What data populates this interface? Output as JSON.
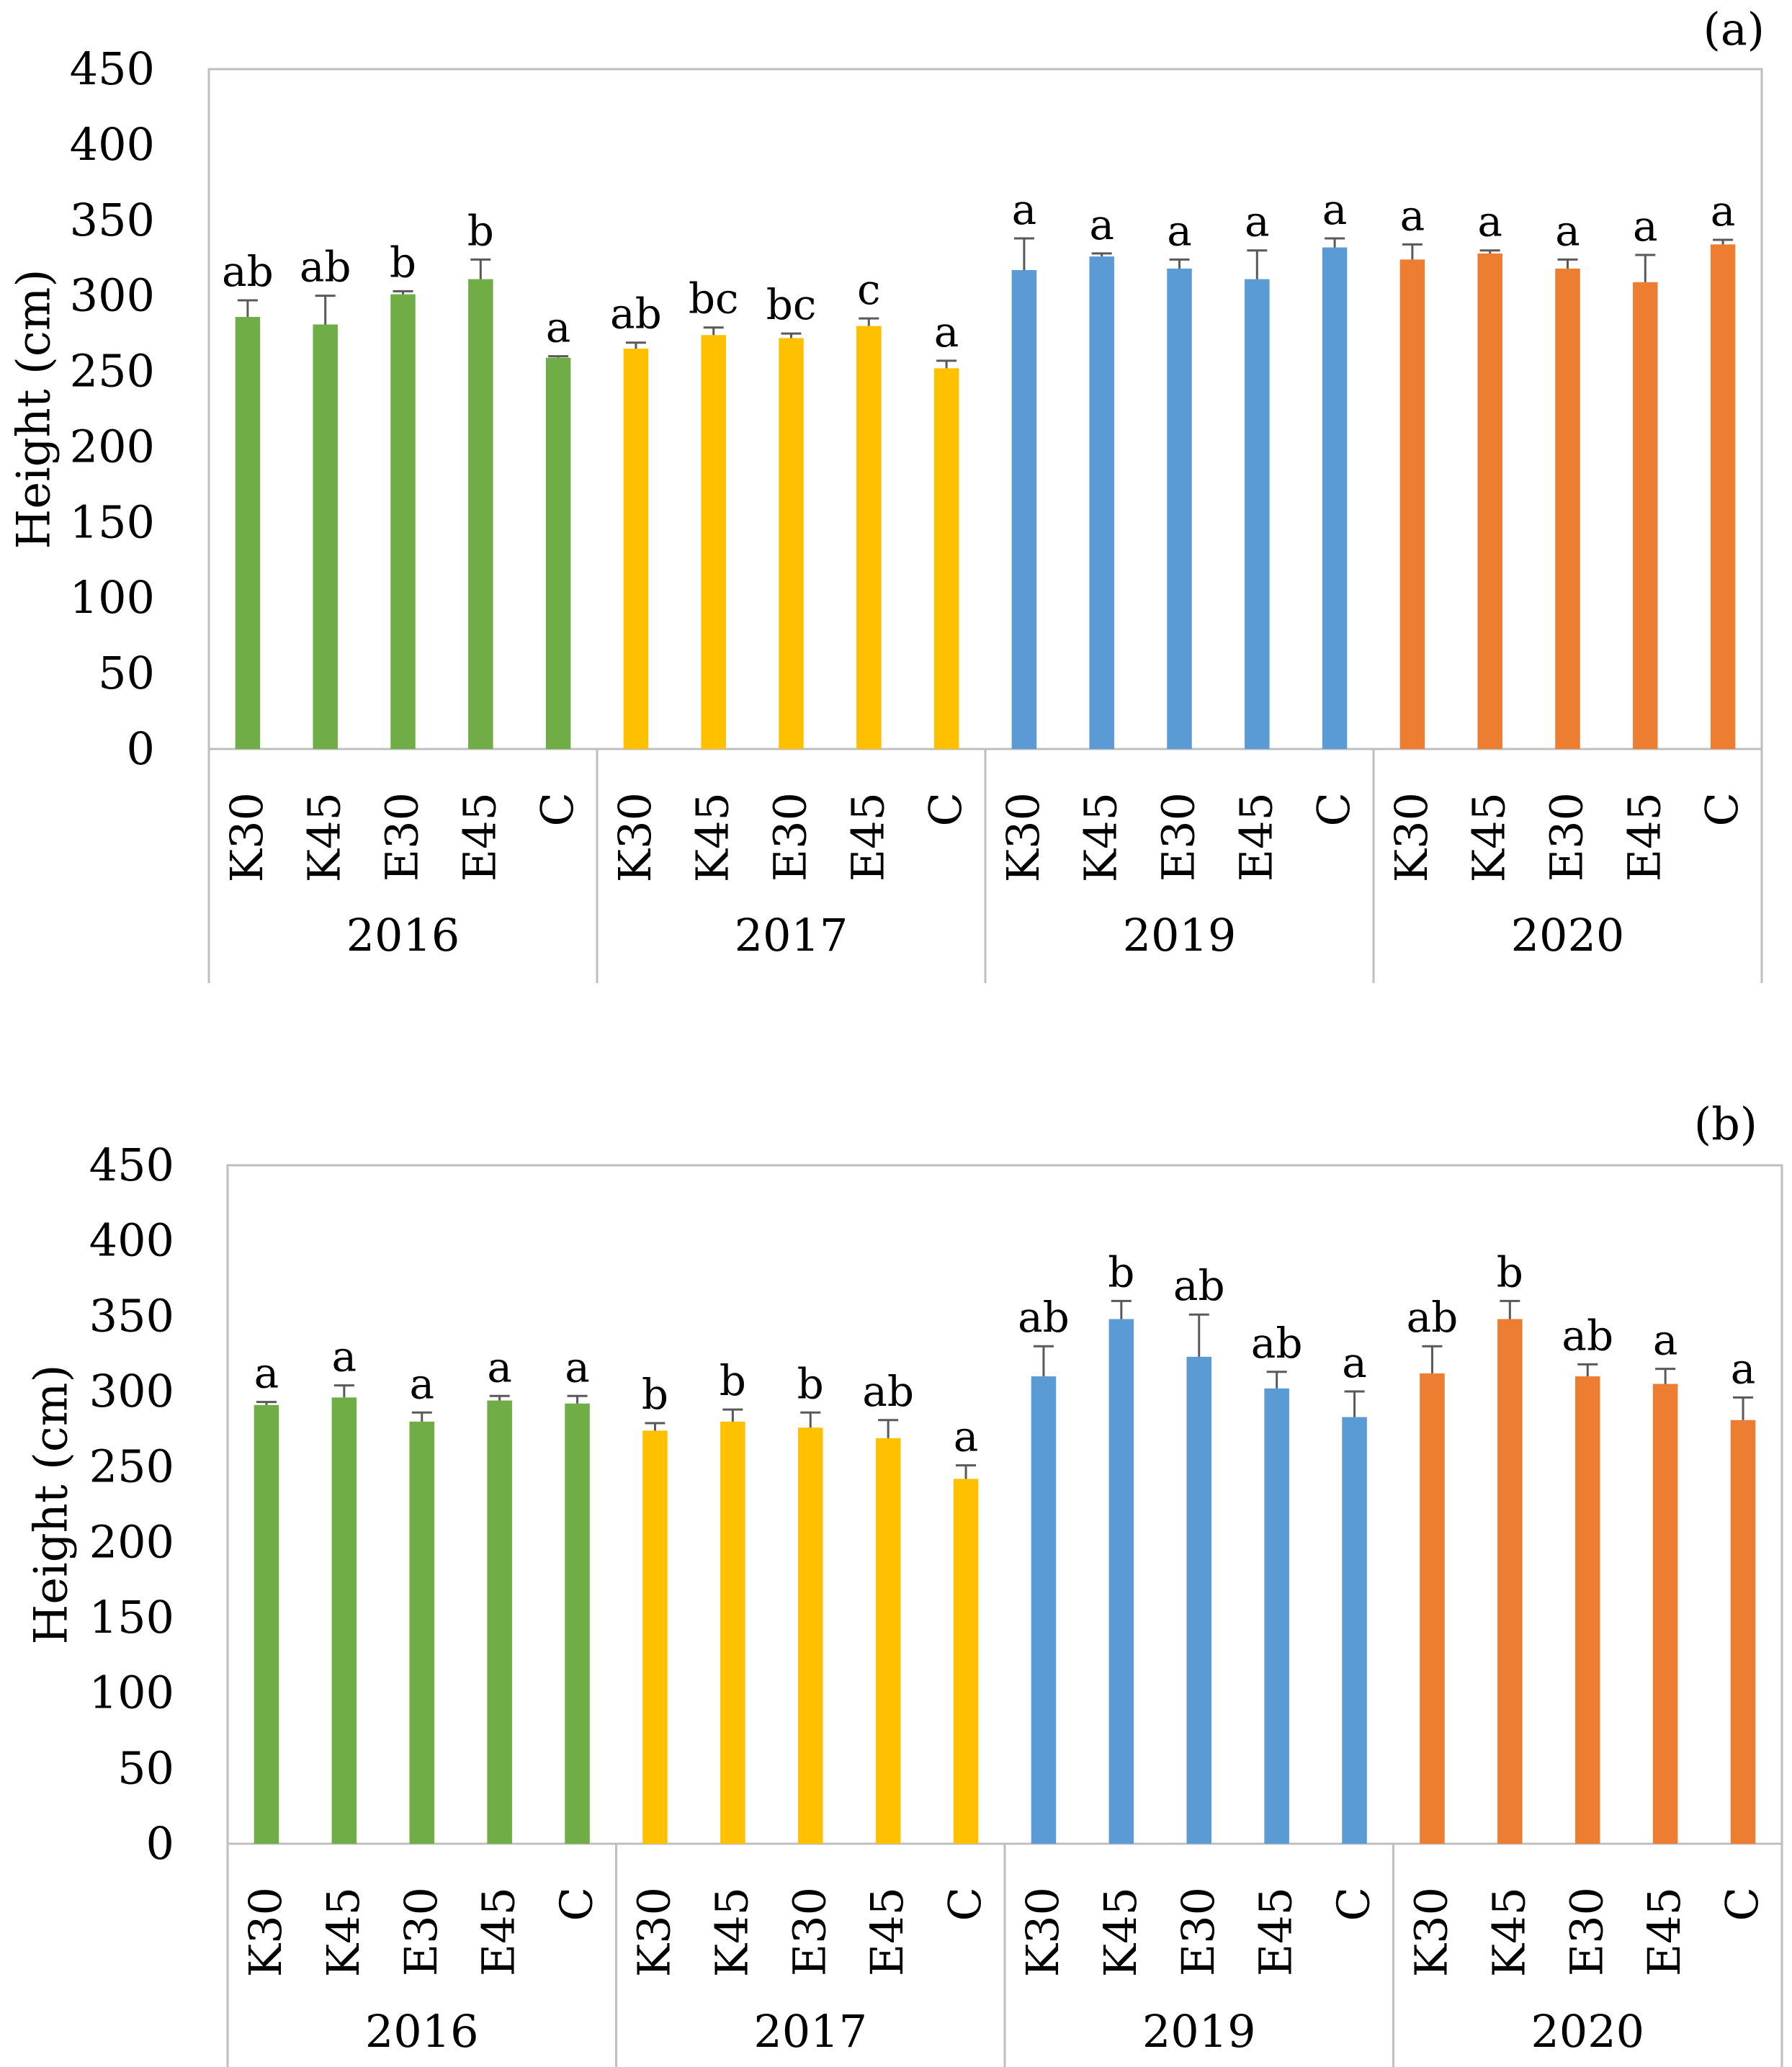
{
  "chart_data": [
    {
      "type": "bar",
      "panel_label": "(a)",
      "ylabel": "Height (cm)",
      "ylim": [
        0,
        450
      ],
      "yticks": [
        0,
        50,
        100,
        150,
        200,
        250,
        300,
        350,
        400,
        450
      ],
      "grid": false,
      "groups": [
        {
          "name": "2016",
          "color": "#70AD47",
          "categories": [
            "K30",
            "K45",
            "E30",
            "E45",
            "C"
          ],
          "values": [
            286,
            281,
            301,
            311,
            259
          ],
          "errors": [
            11,
            19,
            2,
            13,
            1
          ],
          "labels": [
            "ab",
            "ab",
            "b",
            "b",
            "a"
          ]
        },
        {
          "name": "2017",
          "color": "#FFC000",
          "categories": [
            "K30",
            "K45",
            "E30",
            "E45",
            "C"
          ],
          "values": [
            265,
            274,
            272,
            280,
            252
          ],
          "errors": [
            4,
            5,
            3,
            5,
            5
          ],
          "labels": [
            "ab",
            "bc",
            "bc",
            "c",
            "a"
          ]
        },
        {
          "name": "2019",
          "color": "#5B9BD5",
          "categories": [
            "K30",
            "K45",
            "E30",
            "E45",
            "C"
          ],
          "values": [
            317,
            326,
            318,
            311,
            332
          ],
          "errors": [
            21,
            2,
            6,
            19,
            6
          ],
          "labels": [
            "a",
            "a",
            "a",
            "a",
            "a"
          ]
        },
        {
          "name": "2020",
          "color": "#ED7D31",
          "categories": [
            "K30",
            "K45",
            "E30",
            "E45",
            "C"
          ],
          "values": [
            324,
            328,
            318,
            309,
            334
          ],
          "errors": [
            10,
            2,
            6,
            18,
            3
          ],
          "labels": [
            "a",
            "a",
            "a",
            "a",
            "a"
          ]
        }
      ]
    },
    {
      "type": "bar",
      "panel_label": "(b)",
      "ylabel": "Height (cm)",
      "ylim": [
        0,
        450
      ],
      "yticks": [
        0,
        50,
        100,
        150,
        200,
        250,
        300,
        350,
        400,
        450
      ],
      "grid": false,
      "groups": [
        {
          "name": "2016",
          "color": "#70AD47",
          "categories": [
            "K30",
            "K45",
            "E30",
            "E45",
            "C"
          ],
          "values": [
            291,
            296,
            280,
            294,
            292
          ],
          "errors": [
            2,
            8,
            6,
            3,
            5
          ],
          "labels": [
            "a",
            "a",
            "a",
            "a",
            "a"
          ]
        },
        {
          "name": "2017",
          "color": "#FFC000",
          "categories": [
            "K30",
            "K45",
            "E30",
            "E45",
            "C"
          ],
          "values": [
            274,
            280,
            276,
            269,
            242
          ],
          "errors": [
            5,
            8,
            10,
            12,
            9
          ],
          "labels": [
            "b",
            "b",
            "b",
            "ab",
            "a"
          ]
        },
        {
          "name": "2019",
          "color": "#5B9BD5",
          "categories": [
            "K30",
            "K45",
            "E30",
            "E45",
            "C"
          ],
          "values": [
            310,
            348,
            323,
            302,
            283
          ],
          "errors": [
            20,
            12,
            28,
            11,
            17
          ],
          "labels": [
            "ab",
            "b",
            "ab",
            "ab",
            "a"
          ]
        },
        {
          "name": "2020",
          "color": "#ED7D31",
          "categories": [
            "K30",
            "K45",
            "E30",
            "E45",
            "C"
          ],
          "values": [
            312,
            348,
            310,
            305,
            281
          ],
          "errors": [
            18,
            12,
            8,
            10,
            15
          ],
          "labels": [
            "ab",
            "b",
            "ab",
            "a",
            "a"
          ]
        }
      ]
    }
  ]
}
